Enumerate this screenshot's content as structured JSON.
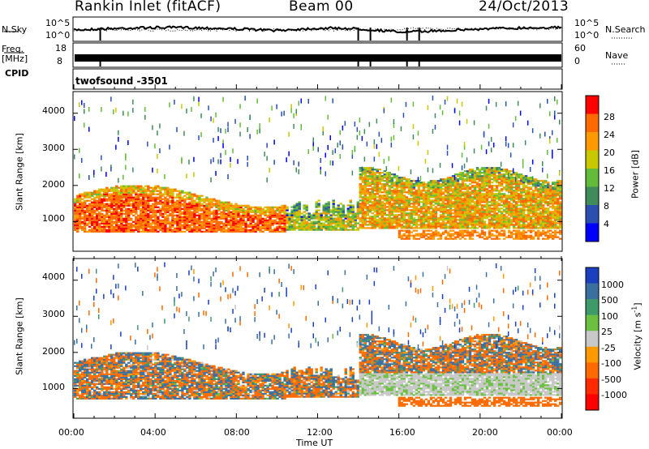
{
  "header": {
    "station": "Rankin Inlet (fitACF)",
    "beam": "Beam 00",
    "date": "24/Oct/2013"
  },
  "top_panels": {
    "nsky_label": "N.Sky",
    "nsky_ticks": [
      "10^5",
      "10^0"
    ],
    "nsearch_label": "N.Search",
    "nsearch_ticks": [
      "10^5",
      "10^0"
    ],
    "freq_label": "Freq.",
    "freq_unit": "[MHz]",
    "freq_ticks": [
      "18",
      "8"
    ],
    "nave_label": "Nave",
    "nave_ticks": [
      "60",
      "0"
    ],
    "cpid_label": "CPID",
    "cpid_value": "twofsound -3501"
  },
  "chart_data": [
    {
      "type": "heatmap",
      "name": "power-panel",
      "ylabel": "Slant Range [km]",
      "ylim": [
        200,
        4600
      ],
      "yticks": [
        "1000",
        "2000",
        "3000",
        "4000"
      ],
      "xlim": [
        0,
        24
      ],
      "colorbar_label": "Power [dB]",
      "colorbar_ticks": [
        "4",
        "8",
        "12",
        "16",
        "20",
        "24",
        "28"
      ],
      "colorbar_colors": [
        "#0000ff",
        "#2a4fb0",
        "#3f8c5a",
        "#63bb3a",
        "#c8c800",
        "#ff9900",
        "#ff6a00",
        "#ff0000"
      ]
    },
    {
      "type": "heatmap",
      "name": "velocity-panel",
      "ylabel": "Slant Range [km]",
      "ylim": [
        200,
        4600
      ],
      "yticks": [
        "1000",
        "2000",
        "3000",
        "4000"
      ],
      "xlim": [
        0,
        24
      ],
      "colorbar_label": "Velocity [m s^-1]",
      "colorbar_ticks": [
        "1000",
        "500",
        "100",
        "25",
        "-25",
        "-100",
        "-500",
        "-1000"
      ],
      "colorbar_colors": [
        "#1a3fbf",
        "#3a6fa0",
        "#3f9a6a",
        "#6cc040",
        "#c8c8c8",
        "#ff9900",
        "#ff6a00",
        "#ff2a00",
        "#ff0000"
      ]
    }
  ],
  "xaxis": {
    "ticks": [
      "00:00",
      "04:00",
      "08:00",
      "12:00",
      "16:00",
      "20:00",
      "00:00"
    ],
    "label": "Time UT"
  }
}
